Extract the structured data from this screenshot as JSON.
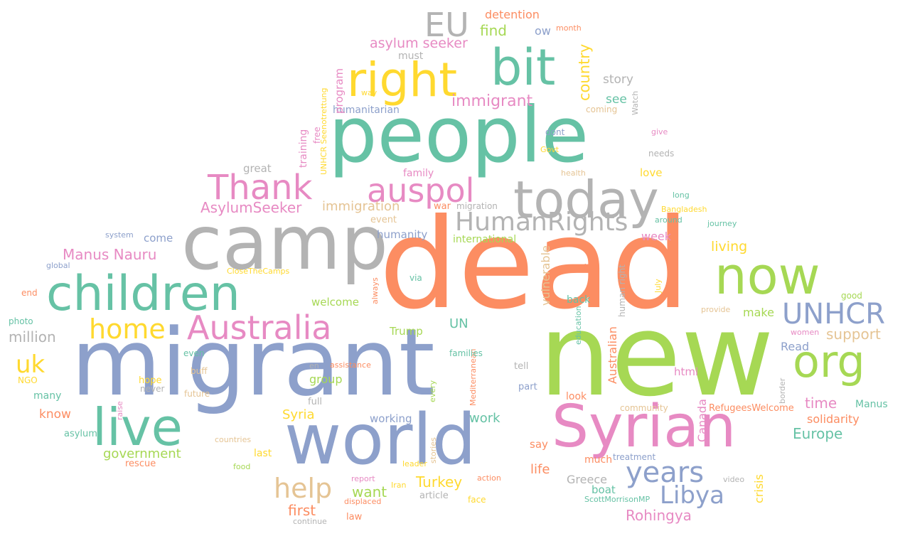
{
  "colors": {
    "teal": "#66c2a5",
    "orange": "#fc8d62",
    "blue": "#8da0cb",
    "pink": "#e78ac3",
    "green": "#a6d854",
    "yellow": "#ffd92f",
    "tan": "#e5c494",
    "gray": "#b3b3b3"
  },
  "words": [
    "people",
    "dead",
    "new",
    "migrant",
    "camp",
    "world",
    "Syrian",
    "children",
    "today",
    "live",
    "right",
    "bit",
    "now",
    "org",
    "UNHCR",
    "Australia",
    "Thank",
    "auspol",
    "HumanRights",
    "home",
    "EU",
    "years",
    "Libya",
    "help",
    "uk",
    "AsylumSeeker",
    "Manus Nauru",
    "asylum seeker",
    "immigrant",
    "country",
    "find",
    "ow",
    "detention",
    "month",
    "story",
    "see",
    "million",
    "immigration",
    "government",
    "first",
    "want",
    "Turkey",
    "Rohingya",
    "Europe",
    "support",
    "living",
    "week",
    "make",
    "time",
    "solidarity",
    "Manus",
    "Read",
    "html",
    "Canada",
    "Australian",
    "Greece",
    "boat",
    "crisis",
    "say",
    "life",
    "look",
    "much",
    "UN",
    "Syria",
    "know",
    "work",
    "working",
    "humanity",
    "international",
    "humanitarian",
    "program",
    "must",
    "free",
    "training",
    "UNHCR Seenotrettung",
    "way",
    "great",
    "family",
    "love",
    "come",
    "system",
    "global",
    "end",
    "photo",
    "welcome",
    "group",
    "hope",
    "many",
    "asylum",
    "rescue",
    "food",
    "countries",
    "last",
    "leader",
    "report",
    "Iran",
    "displaced",
    "law",
    "article",
    "face",
    "continue",
    "action",
    "treatment",
    "video",
    "ScottMorrisonMP",
    "women",
    "good",
    "journey",
    "around",
    "Bangladesh",
    "long",
    "health",
    "give",
    "needs",
    "Govt",
    "dont",
    "coming",
    "Watch",
    "war",
    "migration",
    "event",
    "via",
    "vulnerable",
    "back",
    "real",
    "always",
    "CloseTheCamps",
    "July",
    "human right",
    "provide",
    "education",
    "border",
    "RefugeesWelcome",
    "community",
    "tell",
    "part",
    "en",
    "assistance",
    "Mediterranean",
    "every",
    "stories",
    "raise",
    "buff",
    "NGO",
    "never",
    "future",
    "even",
    "full",
    "Trump",
    "families"
  ]
}
